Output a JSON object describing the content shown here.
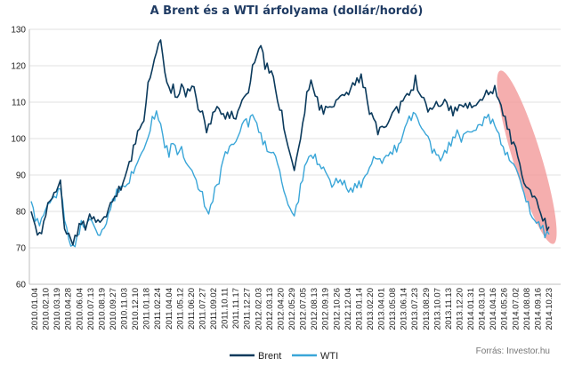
{
  "chart_data": {
    "type": "line",
    "title": "A Brent és a WTI árfolyama (dollár/hordó)",
    "source": "Forrás: Investor.hu",
    "ylim": [
      60,
      130
    ],
    "yticks": [
      60,
      70,
      80,
      90,
      100,
      110,
      120,
      130
    ],
    "grid": true,
    "legend_position": "bottom-center",
    "x_tick_labels": [
      "2010.01.04",
      "2010.02.10",
      "2010.03.19",
      "2010.04.28",
      "2010.06.04",
      "2010.07.13",
      "2010.08.19",
      "2010.09.27",
      "2010.11.03",
      "2010.12.10",
      "2011.01.18",
      "2011.02.24",
      "2011.04.04",
      "2011.05.12",
      "2011.06.20",
      "2011.07.27",
      "2011.09.02",
      "2011.10.11",
      "2011.11.17",
      "2011.12.27",
      "2012.02.03",
      "2012.03.13",
      "2012.04.20",
      "2012.05.29",
      "2012.07.05",
      "2012.08.13",
      "2012.09.19",
      "2012.10.26",
      "2012.12.04",
      "2013.01.14",
      "2013.02.20",
      "2013.04.01",
      "2013.05.08",
      "2013.06.14",
      "2013.07.23",
      "2013.08.29",
      "2013.10.07",
      "2013.11.13",
      "2013.12.20",
      "2014.01.31",
      "2014.03.10",
      "2014.04.16",
      "2014.05.26",
      "2014.07.02",
      "2014.08.08",
      "2014.09.16",
      "2014.10.23"
    ],
    "highlight": "ellipse over the 2014 decline",
    "series": [
      {
        "name": "Brent",
        "color": "#0b3a5c",
        "values": [
          80,
          76,
          73,
          77,
          81,
          83,
          85,
          88,
          76,
          74,
          72,
          74,
          77,
          76,
          79,
          79,
          77,
          77,
          78,
          81,
          84,
          86,
          88,
          92,
          94,
          100,
          103,
          106,
          116,
          119,
          124,
          126,
          118,
          113,
          114,
          111,
          114,
          112,
          113,
          115,
          109,
          108,
          103,
          104,
          108,
          108,
          106,
          107,
          106,
          105,
          108,
          111,
          113,
          120,
          124,
          126,
          120,
          119,
          117,
          111,
          107,
          100,
          95,
          90,
          97,
          103,
          113,
          116,
          112,
          109,
          107,
          110,
          109,
          111,
          112,
          111,
          112,
          114,
          116,
          117,
          113,
          107,
          105,
          102,
          104,
          104,
          107,
          108,
          108,
          110,
          112,
          113,
          116,
          112,
          110,
          107,
          108,
          110,
          110,
          111,
          109,
          107,
          108,
          110,
          109,
          110,
          108,
          109,
          110,
          112,
          113,
          114,
          111,
          107,
          103,
          100,
          98,
          94,
          88,
          86,
          84,
          82,
          79,
          77,
          75
        ]
      },
      {
        "name": "WTI",
        "color": "#3aa6d8",
        "values": [
          82,
          78,
          76,
          80,
          83,
          84,
          85,
          86,
          78,
          72,
          70,
          73,
          76,
          75,
          77,
          76,
          74,
          75,
          78,
          81,
          84,
          86,
          87,
          88,
          90,
          92,
          94,
          96,
          100,
          105,
          108,
          104,
          98,
          96,
          99,
          97,
          98,
          94,
          92,
          89,
          86,
          84,
          80,
          81,
          86,
          88,
          94,
          97,
          99,
          100,
          103,
          105,
          104,
          106,
          104,
          101,
          98,
          96,
          95,
          93,
          88,
          84,
          82,
          79,
          84,
          89,
          94,
          96,
          95,
          93,
          91,
          89,
          86,
          88,
          89,
          88,
          86,
          86,
          87,
          88,
          90,
          93,
          95,
          94,
          93,
          94,
          96,
          97,
          98,
          101,
          104,
          106,
          107,
          105,
          103,
          101,
          97,
          95,
          94,
          96,
          98,
          100,
          101,
          99,
          101,
          102,
          103,
          104,
          105,
          106,
          105,
          104,
          101,
          98,
          95,
          93,
          91,
          88,
          85,
          82,
          79,
          77,
          76,
          74,
          74
        ]
      }
    ]
  }
}
